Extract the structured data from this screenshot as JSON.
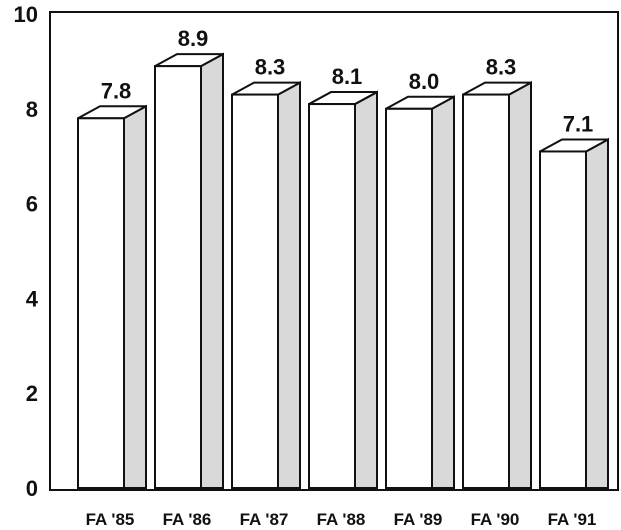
{
  "chart_data": {
    "type": "bar",
    "categories": [
      "FA '85",
      "FA '86",
      "FA '87",
      "FA '88",
      "FA '89",
      "FA '90",
      "FA '91"
    ],
    "values": [
      7.8,
      8.9,
      8.3,
      8.1,
      8.0,
      8.3,
      7.1
    ],
    "data_labels": [
      "7.8",
      "8.9",
      "8.3",
      "8.1",
      "8.0",
      "8.3",
      "7.1"
    ],
    "yticks": [
      "0",
      "2",
      "4",
      "6",
      "8",
      "10"
    ],
    "ylim": [
      0,
      10
    ],
    "title": "",
    "xlabel": "",
    "ylabel": "",
    "grid": false,
    "style": "3d-bars"
  }
}
